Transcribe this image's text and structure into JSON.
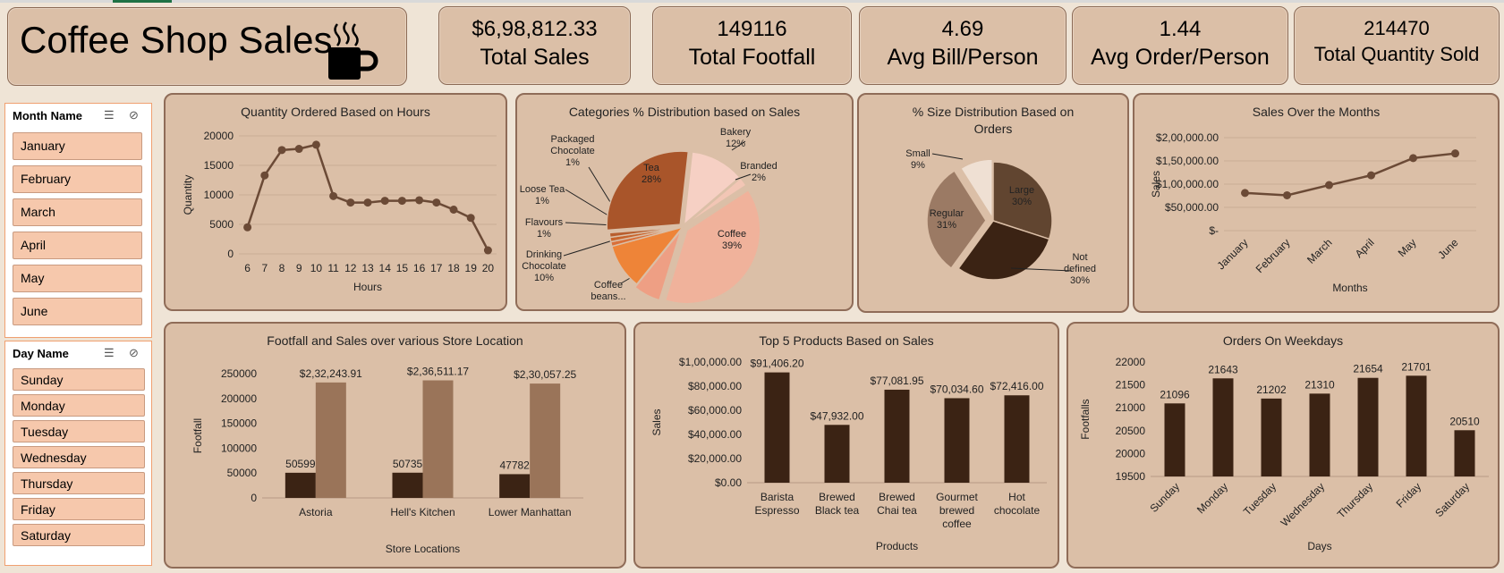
{
  "header": {
    "title": "Coffee Shop Sales",
    "icon": "coffee-cup-icon"
  },
  "kpis": [
    {
      "value": "$6,98,812.33",
      "label": "Total Sales"
    },
    {
      "value": "149116",
      "label": "Total Footfall"
    },
    {
      "value": "4.69",
      "label": "Avg Bill/Person"
    },
    {
      "value": "1.44",
      "label": "Avg Order/Person"
    },
    {
      "value": "214470",
      "label": "Total Quantity Sold"
    }
  ],
  "month_slicer": {
    "title": "Month Name",
    "items": [
      "January",
      "February",
      "March",
      "April",
      "May",
      "June"
    ]
  },
  "day_slicer": {
    "title": "Day Name",
    "items": [
      "Sunday",
      "Monday",
      "Tuesday",
      "Wednesday",
      "Thursday",
      "Friday",
      "Saturday"
    ]
  },
  "colors": {
    "dark": "#3b2314",
    "medium": "#9a7459",
    "panel": "#dbbfa7",
    "line": "#6b4a36"
  },
  "chart_data": [
    {
      "id": "hours",
      "type": "line",
      "title": "Quantity Ordered Based on Hours",
      "xlabel": "Hours",
      "ylabel": "Quantity",
      "x": [
        "6",
        "7",
        "8",
        "9",
        "10",
        "11",
        "12",
        "13",
        "14",
        "15",
        "16",
        "17",
        "18",
        "19",
        "20"
      ],
      "values": [
        4500,
        13300,
        17600,
        17800,
        18500,
        9800,
        8700,
        8700,
        9000,
        9000,
        9100,
        8700,
        7500,
        6100,
        600
      ],
      "ylim": [
        0,
        20000
      ],
      "yticks": [
        "20000",
        "15000",
        "10000",
        "5000",
        "0"
      ]
    },
    {
      "id": "categories",
      "type": "pie",
      "title": "Categories % Distribution based on Sales",
      "slices": [
        {
          "label": "Coffee",
          "pct": "39%",
          "value": 39,
          "color": "#f0b29b"
        },
        {
          "label": "Coffee beans...",
          "pct": "",
          "value": 6,
          "color": "#ee9f84"
        },
        {
          "label": "Drinking Chocolate",
          "pct": "10%",
          "value": 10,
          "color": "#ee8438"
        },
        {
          "label": "Flavours",
          "pct": "1%",
          "value": 1,
          "color": "#d9703a"
        },
        {
          "label": "Loose Tea",
          "pct": "1%",
          "value": 1,
          "color": "#c8642c"
        },
        {
          "label": "Packaged Chocolate",
          "pct": "1%",
          "value": 1,
          "color": "#b85e2e"
        },
        {
          "label": "Tea",
          "pct": "28%",
          "value": 28,
          "color": "#a9552a"
        },
        {
          "label": "Bakery",
          "pct": "12%",
          "value": 12,
          "color": "#f6d0c4"
        },
        {
          "label": "Branded",
          "pct": "2%",
          "value": 2,
          "color": "#f2c6b5"
        }
      ]
    },
    {
      "id": "sizes",
      "type": "pie",
      "title_line1": "%  Size Distribution Based on",
      "title_line2": "Orders",
      "slices": [
        {
          "label": "Large",
          "pct": "30%",
          "value": 30,
          "color": "#614530"
        },
        {
          "label": "Not defined",
          "pct": "30%",
          "value": 30,
          "color": "#3b2314"
        },
        {
          "label": "Regular",
          "pct": "31%",
          "value": 31,
          "color": "#9b7a64"
        },
        {
          "label": "Small",
          "pct": "9%",
          "value": 9,
          "color": "#efe0d3"
        }
      ]
    },
    {
      "id": "months",
      "type": "line",
      "title": "Sales Over the Months",
      "xlabel": "Months",
      "ylabel": "Sales",
      "x": [
        "January",
        "February",
        "March",
        "April",
        "May",
        "June"
      ],
      "values": [
        81000,
        76000,
        98000,
        119000,
        156000,
        166000
      ],
      "ylim": [
        0,
        200000
      ],
      "yticks": [
        "$2,00,000.00",
        "$1,50,000.00",
        "$1,00,000.00",
        "$50,000.00",
        "$-"
      ]
    },
    {
      "id": "stores",
      "type": "bar",
      "title": "Footfall and Sales over various Store Location",
      "xlabel": "Store Locations",
      "ylabel": "Footfall",
      "categories": [
        "Astoria",
        "Hell's Kitchen",
        "Lower Manhattan"
      ],
      "series": [
        {
          "values": [
            50599,
            50735,
            47782
          ],
          "labels": [
            "50599",
            "50735",
            "47782"
          ]
        },
        {
          "values": [
            232243.91,
            236511.17,
            230057.25
          ],
          "labels": [
            "$2,32,243.91",
            "$2,36,511.17",
            "$2,30,057.25"
          ]
        }
      ],
      "ylim": [
        0,
        250000
      ],
      "yticks": [
        "250000",
        "200000",
        "150000",
        "100000",
        "50000",
        "0"
      ]
    },
    {
      "id": "products",
      "type": "bar",
      "title": "Top 5 Products Based on Sales",
      "xlabel": "Products",
      "ylabel": "Sales",
      "categories": [
        [
          "Barista",
          "Espresso"
        ],
        [
          "Brewed",
          "Black tea"
        ],
        [
          "Brewed",
          "Chai tea"
        ],
        [
          "Gourmet",
          "brewed",
          "coffee"
        ],
        [
          "Hot",
          "chocolate"
        ]
      ],
      "values": [
        91406.2,
        47932.0,
        77081.95,
        70034.6,
        72416.0
      ],
      "labels": [
        "$91,406.20",
        "$47,932.00",
        "$77,081.95",
        "$70,034.60",
        "$72,416.00"
      ],
      "ylim": [
        0,
        100000
      ],
      "yticks": [
        "$1,00,000.00",
        "$80,000.00",
        "$60,000.00",
        "$40,000.00",
        "$20,000.00",
        "$0.00"
      ]
    },
    {
      "id": "weekdays",
      "type": "bar",
      "title": "Orders On Weekdays",
      "xlabel": "Days",
      "ylabel": "Footfalls",
      "categories": [
        "Sunday",
        "Monday",
        "Tuesday",
        "Wednesday",
        "Thursday",
        "Friday",
        "Saturday"
      ],
      "values": [
        21096,
        21643,
        21202,
        21310,
        21654,
        21701,
        20510
      ],
      "labels": [
        "21096",
        "21643",
        "21202",
        "21310",
        "21654",
        "21701",
        "20510"
      ],
      "ylim": [
        19500,
        22000
      ],
      "yticks": [
        "22000",
        "21500",
        "21000",
        "20500",
        "20000",
        "19500"
      ]
    }
  ]
}
